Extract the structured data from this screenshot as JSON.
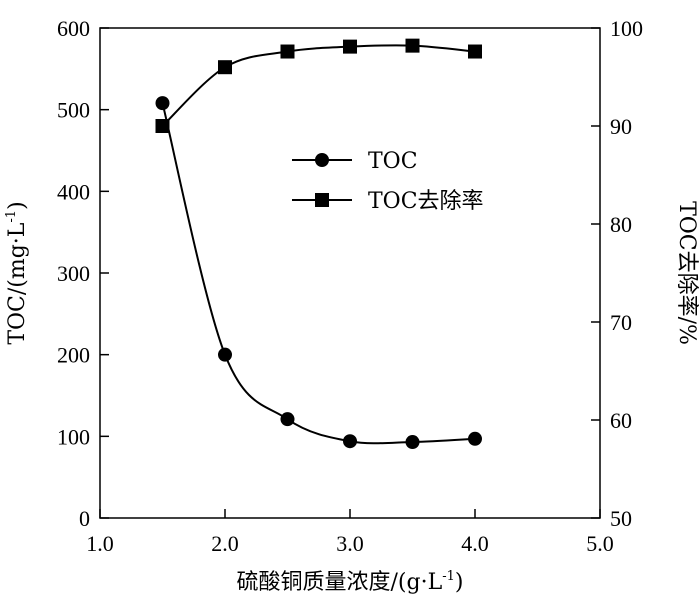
{
  "chart_data": {
    "type": "line",
    "x": [
      1.5,
      2.0,
      2.5,
      3.0,
      3.5,
      4.0
    ],
    "series": [
      {
        "name": "TOC",
        "axis": "left",
        "marker": "circle",
        "values": [
          508,
          200,
          121,
          94,
          93,
          97
        ]
      },
      {
        "name": "TOC去除率",
        "axis": "right",
        "marker": "square",
        "values": [
          90,
          96,
          97.6,
          98.1,
          98.2,
          97.6
        ]
      }
    ],
    "xlabel_main": "硫酸铜质量浓度/(g·L",
    "xlabel_sup": "-1",
    "xlabel_end": ")",
    "ylabel_left_main": "TOC/(mg·L",
    "ylabel_left_sup": "-1",
    "ylabel_left_end": ")",
    "ylabel_right": "TOC去除率/%",
    "xlim": [
      1.0,
      5.0
    ],
    "ylim_left": [
      0,
      600
    ],
    "ylim_right": [
      50,
      100
    ],
    "x_ticks": [
      "1.0",
      "2.0",
      "3.0",
      "4.0",
      "5.0"
    ],
    "y_left_ticks": [
      "0",
      "100",
      "200",
      "300",
      "400",
      "500",
      "600"
    ],
    "y_right_ticks": [
      "50",
      "60",
      "70",
      "80",
      "90",
      "100"
    ],
    "grid": false,
    "legend_position": "upper-center",
    "line_color": "#000000"
  }
}
